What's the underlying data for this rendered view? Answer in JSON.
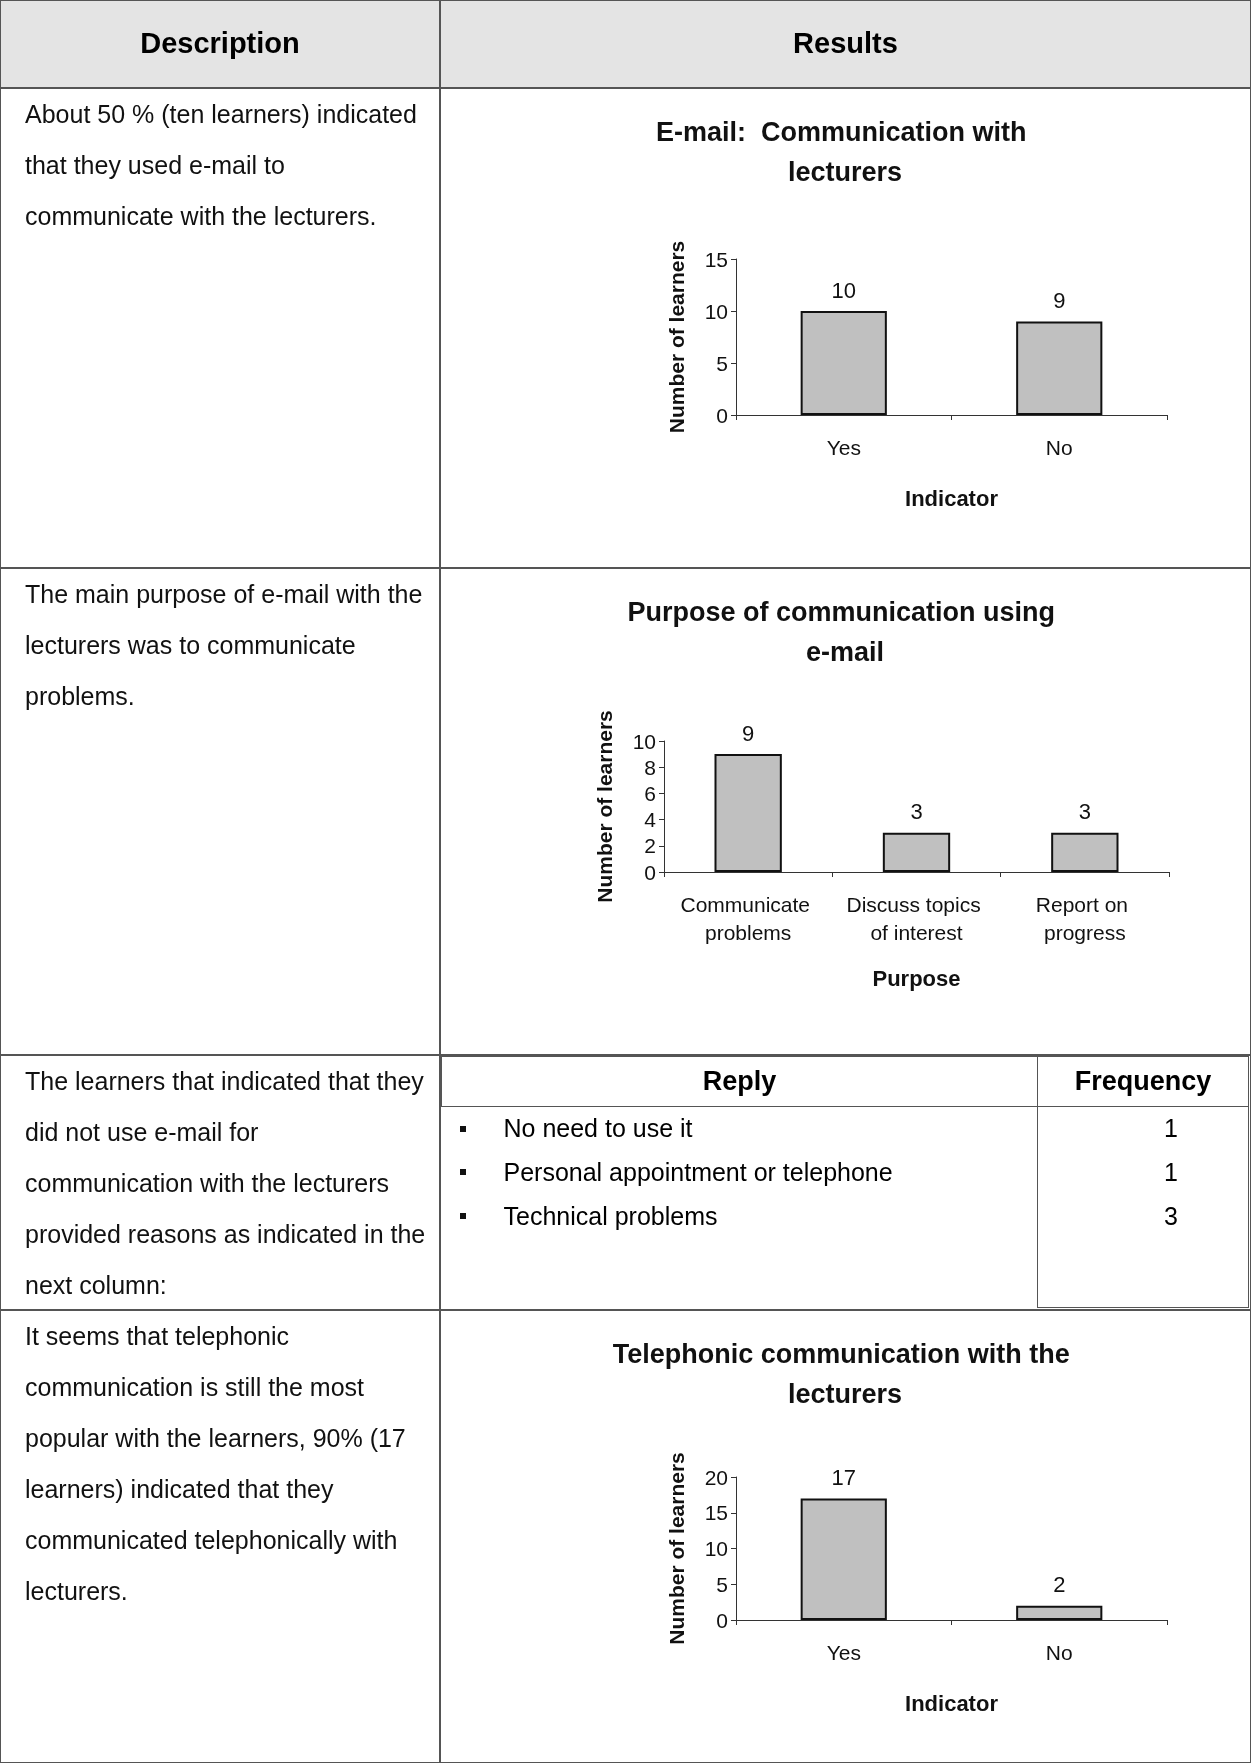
{
  "chart_data": [
    {
      "type": "bar",
      "title": "E-mail:  Communication with lecturers",
      "xlabel": "Indicator",
      "ylabel": "Number of learners",
      "categories": [
        "Yes",
        "No"
      ],
      "values": [
        10,
        9
      ],
      "color": "#c0c0c0",
      "ylim": [
        0,
        15
      ],
      "yticks": [
        0,
        5,
        10,
        15
      ],
      "data_labels": true,
      "annotations": [
        "Description",
        "Results",
        "About 50 % (ten learners) indicated that they used e-mail to communicate with the lecturers."
      ]
    },
    {
      "type": "bar",
      "title": "Purpose of communication using e-mail",
      "xlabel": "Purpose",
      "ylabel": "Number of learners",
      "categories": [
        "Communicate problems",
        "Discuss topics of interest",
        "Report on progress"
      ],
      "values": [
        9,
        3,
        3
      ],
      "color": "#c0c0c0",
      "ylim": [
        0,
        10
      ],
      "yticks": [
        0,
        2,
        4,
        6,
        8,
        10
      ],
      "data_labels": true,
      "annotations": [
        "The main purpose of e-mail with the lecturers was to communicate problems."
      ]
    },
    {
      "type": "other",
      "xlabel": "Reply",
      "ylabel": "Frequency",
      "categories": [
        "No need to use it",
        "Personal appointment or telephone",
        "Technical problems"
      ],
      "values": [
        1,
        1,
        3
      ],
      "data_labels": true,
      "annotations": [
        "The learners that indicated that they did not use e-mail for communication with the lecturers provided reasons as indicated in the next column:"
      ]
    },
    {
      "type": "bar",
      "title": "Telephonic communication with the lecturers",
      "xlabel": "Indicator",
      "ylabel": "Number of learners",
      "categories": [
        "Yes",
        "No"
      ],
      "values": [
        17,
        2
      ],
      "color": "#c0c0c0",
      "ylim": [
        0,
        20
      ],
      "yticks": [
        0,
        5,
        10,
        15,
        20
      ],
      "data_labels": true,
      "annotations": [
        "It seems that telephonic communication is still the most popular with the learners, 90% (17 learners) indicated that they communicated telephonically with lecturers."
      ]
    }
  ]
}
